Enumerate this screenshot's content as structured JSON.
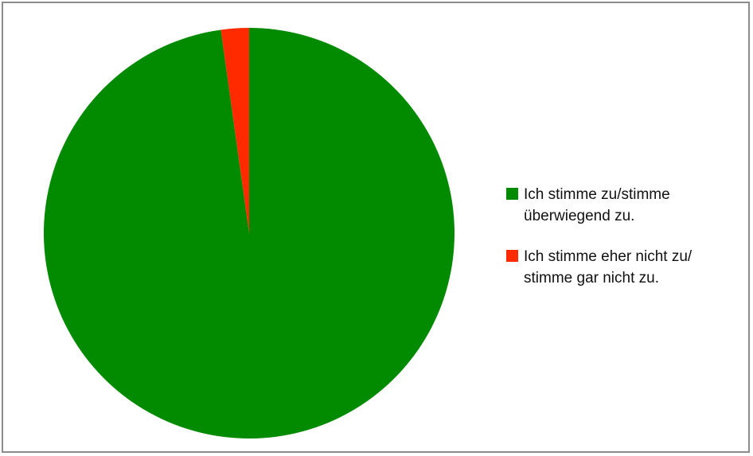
{
  "chart_data": {
    "type": "pie",
    "title": "",
    "slices": [
      {
        "label": "Ich stimme zu/stimme überwiegend zu.",
        "value": 97.8,
        "color": "#028a00"
      },
      {
        "label": "Ich stimme eher nicht zu/ stimme gar nicht zu.",
        "value": 2.2,
        "color": "#ff2a00"
      }
    ],
    "start": "top",
    "direction": "clockwise",
    "legend": {
      "position": "right",
      "items": [
        {
          "label": "Ich stimme zu/stimme überwiegend zu.",
          "color": "#028a00"
        },
        {
          "label": "Ich stimme eher nicht zu/ stimme gar nicht zu.",
          "color": "#ff2a00"
        }
      ]
    },
    "frame_color": "#8c8c8c"
  }
}
